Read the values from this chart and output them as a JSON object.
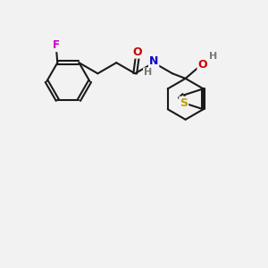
{
  "background_color": "#f2f2f2",
  "bond_color": "#1a1a1a",
  "atom_colors": {
    "F": "#cc00cc",
    "O": "#cc0000",
    "N": "#0000cc",
    "S": "#b8a000",
    "H": "#777777",
    "C": "#1a1a1a"
  },
  "figsize": [
    3.0,
    3.0
  ],
  "dpi": 100
}
